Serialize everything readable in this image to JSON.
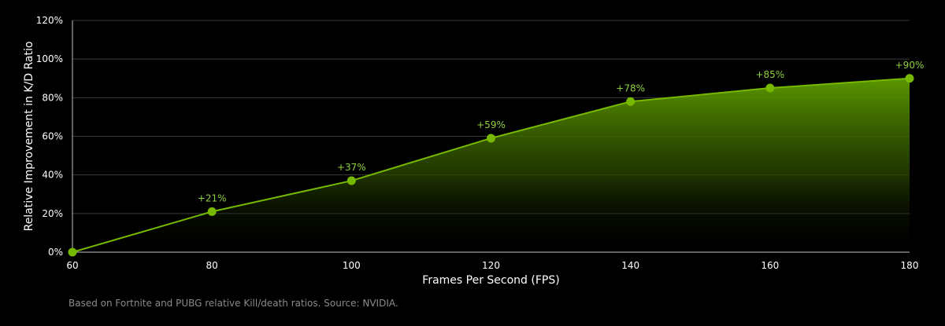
{
  "chart_data": {
    "type": "area",
    "x": [
      60,
      80,
      100,
      120,
      140,
      160,
      180
    ],
    "values": [
      0,
      21,
      37,
      59,
      78,
      85,
      90
    ],
    "data_labels": [
      "",
      "+21%",
      "+37%",
      "+59%",
      "+78%",
      "+85%",
      "+90%"
    ],
    "xlabel": "Frames Per Second (FPS)",
    "ylabel": "Relative Improvement in K/D Ratio",
    "x_ticks": [
      "60",
      "80",
      "100",
      "120",
      "140",
      "160",
      "180"
    ],
    "y_ticks": [
      "0%",
      "20%",
      "40%",
      "60%",
      "80%",
      "100%",
      "120%"
    ],
    "y_tick_values": [
      0,
      20,
      40,
      60,
      80,
      100,
      120
    ],
    "xlim": [
      60,
      180
    ],
    "ylim": [
      0,
      120
    ],
    "grid": true,
    "footnote": "Based on Fortnite and PUBG relative Kill/death ratios. Source: NVIDIA.",
    "colors": {
      "line": "#76b900",
      "marker": "#76b900",
      "label": "#8fd13f",
      "grid": "#3a3a3a",
      "axis": "#bfbfbf",
      "fill_top": "#5f9e00",
      "fill_bottom": "#000000"
    }
  }
}
